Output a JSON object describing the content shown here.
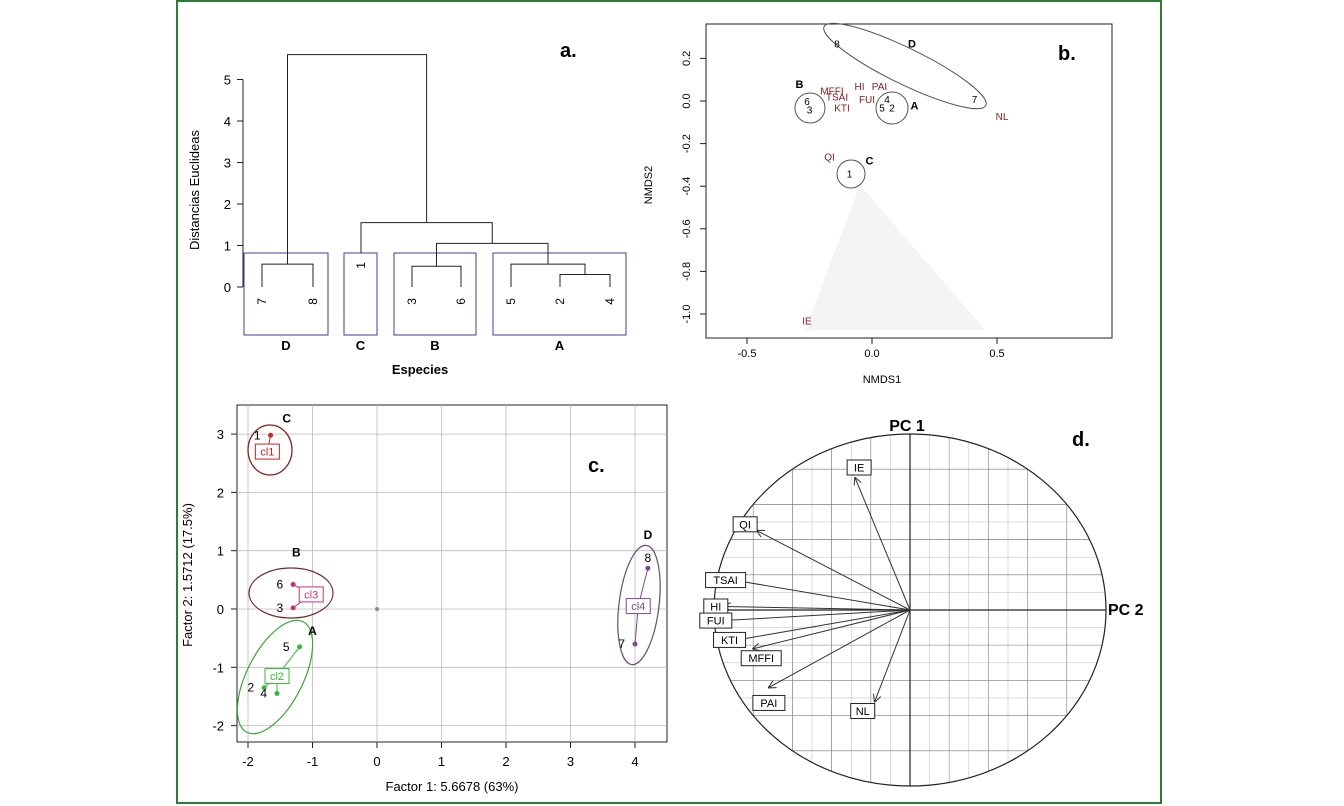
{
  "colors": {
    "frame": "#2e7d32",
    "cluster_box": "#3f3f9f",
    "label_dark_red": "#8b1a1a",
    "c1": "#cc2222",
    "c2": "#33bb33",
    "c3": "#cc3377",
    "c4": "#7b4a8b",
    "ellipse_B": "#7a2a2a",
    "ellipse_A": "#33aa33",
    "ellipse_D": "#6a4a7a"
  },
  "chart_data": [
    {
      "id": "a",
      "type": "dendrogram",
      "panel_label": "a.",
      "ylabel": "Distancias Euclideas",
      "xlabel": "Especies",
      "ylim": [
        0,
        5.5
      ],
      "yticks": [
        0,
        1,
        2,
        3,
        4,
        5
      ],
      "leaves": [
        "7",
        "8",
        "1",
        "3",
        "6",
        "5",
        "2",
        "4"
      ],
      "groups": [
        "D",
        "C",
        "B",
        "A"
      ],
      "merges": [
        {
          "left": "2",
          "right": "4",
          "height": 0.3
        },
        {
          "left": "5",
          "right": "2-4",
          "height": 0.55
        },
        {
          "left": "3",
          "right": "6",
          "height": 0.5
        },
        {
          "left": "7",
          "right": "8",
          "height": 0.55
        },
        {
          "left": "3-6",
          "right": "5-2-4",
          "height": 1.05
        },
        {
          "left": "1",
          "right": "B-A",
          "height": 1.55
        },
        {
          "left": "7-8",
          "right": "C-B-A",
          "height": 5.6
        }
      ]
    },
    {
      "id": "b",
      "type": "scatter",
      "panel_label": "b.",
      "xlabel": "NMDS1",
      "ylabel": "NMDS2",
      "xlim": [
        -0.6,
        0.9
      ],
      "ylim": [
        -1.05,
        0.3
      ],
      "xticks": [
        "-0.5",
        "0.0",
        "0.5"
      ],
      "yticks": [
        "0.2",
        "0.0",
        "-0.2",
        "-0.4",
        "-0.6",
        "-0.8",
        "-1.0"
      ],
      "sites": [
        {
          "label": "8",
          "x": -0.14,
          "y": 0.27
        },
        {
          "label": "7",
          "x": 0.41,
          "y": 0.01
        },
        {
          "label": "6",
          "x": -0.26,
          "y": 0.0
        },
        {
          "label": "3",
          "x": -0.25,
          "y": -0.04
        },
        {
          "label": "4",
          "x": 0.06,
          "y": 0.01
        },
        {
          "label": "5",
          "x": 0.04,
          "y": -0.03
        },
        {
          "label": "2",
          "x": 0.08,
          "y": -0.03
        },
        {
          "label": "1",
          "x": -0.09,
          "y": -0.34
        }
      ],
      "variables": [
        {
          "label": "MFFI",
          "x": -0.16,
          "y": 0.05
        },
        {
          "label": "TSAI",
          "x": -0.14,
          "y": 0.02
        },
        {
          "label": "KTI",
          "x": -0.12,
          "y": -0.03
        },
        {
          "label": "HI",
          "x": -0.05,
          "y": 0.07
        },
        {
          "label": "PAI",
          "x": 0.03,
          "y": 0.07
        },
        {
          "label": "FUI",
          "x": -0.02,
          "y": 0.01
        },
        {
          "label": "NL",
          "x": 0.52,
          "y": -0.07
        },
        {
          "label": "QI",
          "x": -0.17,
          "y": -0.26
        },
        {
          "label": "IE",
          "x": -0.26,
          "y": -1.03
        }
      ],
      "groups": [
        {
          "label": "D",
          "x": 0.16,
          "y": 0.27
        },
        {
          "label": "B",
          "x": -0.29,
          "y": 0.08
        },
        {
          "label": "A",
          "x": 0.17,
          "y": -0.02
        },
        {
          "label": "C",
          "x": -0.01,
          "y": -0.28
        }
      ]
    },
    {
      "id": "c",
      "type": "scatter",
      "panel_label": "c.",
      "xlabel": "Factor 1: 5.6678 (63%)",
      "ylabel": "Factor 2: 1.5712 (17.5%)",
      "xlim": [
        -2.05,
        4.45
      ],
      "ylim": [
        -2.2,
        3.3
      ],
      "xticks": [
        "-2",
        "-1",
        "0",
        "1",
        "2",
        "3",
        "4"
      ],
      "yticks": [
        "3",
        "2",
        "1",
        "0",
        "-1",
        "-2"
      ],
      "points": [
        {
          "label": "1",
          "x": -1.65,
          "y": 2.98,
          "cluster": "cl1"
        },
        {
          "label": "6",
          "x": -1.3,
          "y": 0.42,
          "cluster": "cl3"
        },
        {
          "label": "3",
          "x": -1.3,
          "y": 0.02,
          "cluster": "cl3"
        },
        {
          "label": "5",
          "x": -1.2,
          "y": -0.65,
          "cluster": "cl2"
        },
        {
          "label": "2",
          "x": -1.75,
          "y": -1.35,
          "cluster": "cl2"
        },
        {
          "label": "4",
          "x": -1.55,
          "y": -1.45,
          "cluster": "cl2"
        },
        {
          "label": "8",
          "x": 4.2,
          "y": 0.7,
          "cluster": "cl4"
        },
        {
          "label": "7",
          "x": 4.0,
          "y": -0.6,
          "cluster": "cl4"
        }
      ],
      "clusters": [
        {
          "label": "cl1",
          "x": -1.7,
          "y": 2.7,
          "group": "C"
        },
        {
          "label": "cl2",
          "x": -1.55,
          "y": -1.15,
          "group": "A"
        },
        {
          "label": "cl3",
          "x": -1.02,
          "y": 0.25,
          "group": "B"
        },
        {
          "label": "cl4",
          "x": 4.05,
          "y": 0.05,
          "group": "D"
        }
      ],
      "group_labels": [
        {
          "label": "C",
          "x": -1.4,
          "y": 3.2
        },
        {
          "label": "B",
          "x": -1.25,
          "y": 0.9
        },
        {
          "label": "A",
          "x": -1.0,
          "y": -0.45
        },
        {
          "label": "D",
          "x": 4.2,
          "y": 1.2
        }
      ]
    },
    {
      "id": "d",
      "type": "biplot",
      "panel_label": "d.",
      "axis_labels": {
        "vertical": "PC 1",
        "horizontal": "PC 2"
      },
      "vectors": [
        {
          "label": "IE",
          "x": -0.28,
          "y": 0.75
        },
        {
          "label": "QI",
          "x": -0.78,
          "y": 0.45
        },
        {
          "label": "TSAI",
          "x": -0.9,
          "y": 0.17
        },
        {
          "label": "HI",
          "x": -0.95,
          "y": 0.02
        },
        {
          "label": "FUI",
          "x": -0.95,
          "y": -0.06
        },
        {
          "label": "KTI",
          "x": -0.88,
          "y": -0.17
        },
        {
          "label": "MFFI",
          "x": -0.8,
          "y": -0.22
        },
        {
          "label": "PAI",
          "x": -0.72,
          "y": -0.44
        },
        {
          "label": "NL",
          "x": -0.18,
          "y": -0.52
        }
      ]
    }
  ]
}
